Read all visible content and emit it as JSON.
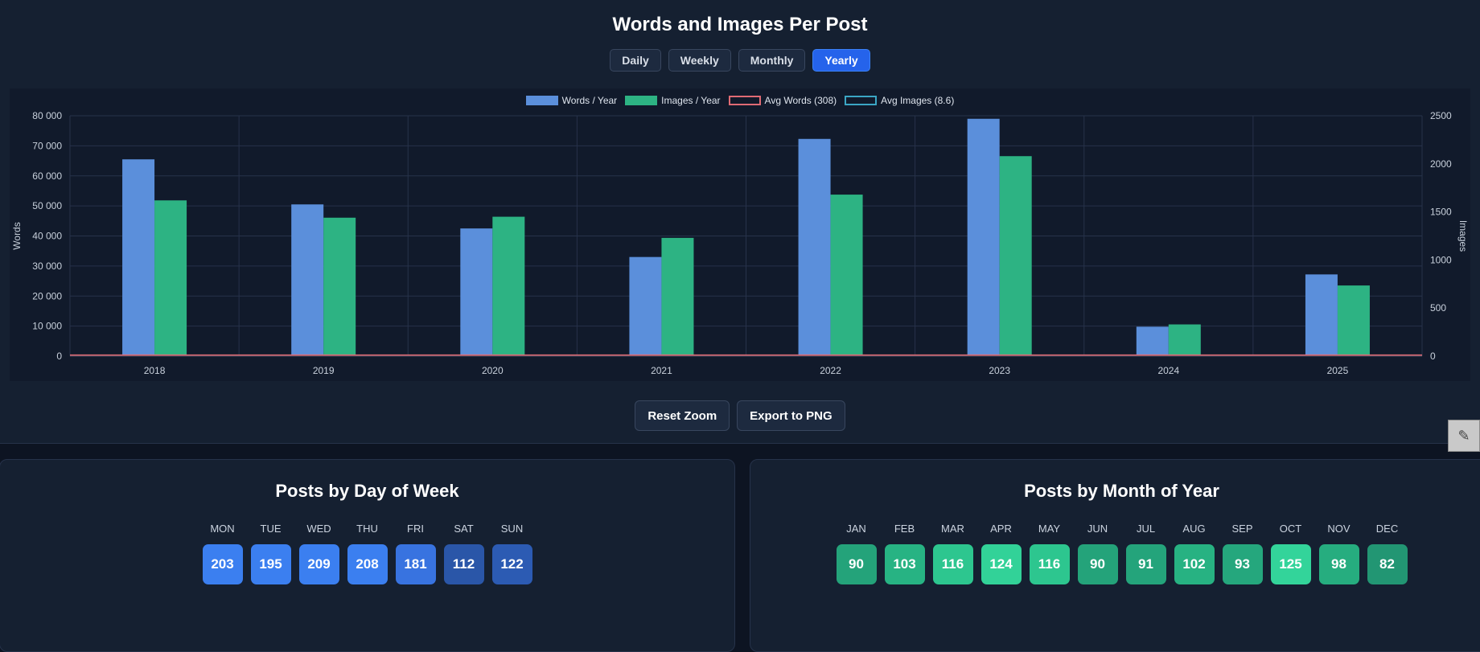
{
  "title": "Words and Images Per Post",
  "range_buttons": [
    {
      "label": "Daily",
      "active": false
    },
    {
      "label": "Weekly",
      "active": false
    },
    {
      "label": "Monthly",
      "active": false
    },
    {
      "label": "Yearly",
      "active": true
    }
  ],
  "legend": [
    {
      "label": "Words / Year",
      "fill": "#5b8fdb",
      "border": "#5b8fdb"
    },
    {
      "label": "Images / Year",
      "fill": "#2db383",
      "border": "#2db383"
    },
    {
      "label": "Avg Words (308)",
      "fill": "transparent",
      "border": "#e06b74"
    },
    {
      "label": "Avg Images (8.6)",
      "fill": "transparent",
      "border": "#3ba6c4"
    }
  ],
  "chart_data": {
    "type": "bar",
    "title": "Words and Images Per Post",
    "categories": [
      "2018",
      "2019",
      "2020",
      "2021",
      "2022",
      "2023",
      "2024",
      "2025"
    ],
    "series": [
      {
        "name": "Words / Year",
        "axis": "left",
        "color": "#5b8fdb",
        "values": [
          65500,
          50500,
          42500,
          33000,
          72300,
          79000,
          9800,
          27200
        ]
      },
      {
        "name": "Images / Year",
        "axis": "right",
        "color": "#2db383",
        "values": [
          1620,
          1440,
          1450,
          1230,
          1680,
          2080,
          330,
          735
        ]
      },
      {
        "name": "Avg Words (308)",
        "axis": "left",
        "type": "line",
        "color": "#e06b74",
        "value": 308
      },
      {
        "name": "Avg Images (8.6)",
        "axis": "right",
        "type": "line",
        "color": "#3ba6c4",
        "value": 8.6
      }
    ],
    "ylabel": "Words",
    "y2label": "Images",
    "ylim": [
      0,
      80000
    ],
    "y2lim": [
      0,
      2500
    ],
    "yticks": [
      "0",
      "10 000",
      "20 000",
      "30 000",
      "40 000",
      "50 000",
      "60 000",
      "70 000",
      "80 000"
    ],
    "y2ticks": [
      "0",
      "500",
      "1000",
      "1500",
      "2000",
      "2500"
    ],
    "grid": true,
    "legend_position": "top-center"
  },
  "actions": {
    "reset": "Reset Zoom",
    "export": "Export to PNG"
  },
  "day_of_week": {
    "title": "Posts by Day of Week",
    "items": [
      {
        "label": "MON",
        "value": "203",
        "color": "#3b7ff0"
      },
      {
        "label": "TUE",
        "value": "195",
        "color": "#3b7ff0"
      },
      {
        "label": "WED",
        "value": "209",
        "color": "#3b7ff0"
      },
      {
        "label": "THU",
        "value": "208",
        "color": "#3b7ff0"
      },
      {
        "label": "FRI",
        "value": "181",
        "color": "#3873e0"
      },
      {
        "label": "SAT",
        "value": "112",
        "color": "#2a56a8"
      },
      {
        "label": "SUN",
        "value": "122",
        "color": "#2c5bb3"
      }
    ]
  },
  "month_of_year": {
    "title": "Posts by Month of Year",
    "items": [
      {
        "label": "JAN",
        "value": "90",
        "color": "#24a37a"
      },
      {
        "label": "FEB",
        "value": "103",
        "color": "#27b383"
      },
      {
        "label": "MAR",
        "value": "116",
        "color": "#2dc68f"
      },
      {
        "label": "APR",
        "value": "124",
        "color": "#32d298"
      },
      {
        "label": "MAY",
        "value": "116",
        "color": "#2dc68f"
      },
      {
        "label": "JUN",
        "value": "90",
        "color": "#24a37a"
      },
      {
        "label": "JUL",
        "value": "91",
        "color": "#24a47b"
      },
      {
        "label": "AUG",
        "value": "102",
        "color": "#27b282"
      },
      {
        "label": "SEP",
        "value": "93",
        "color": "#25a77d"
      },
      {
        "label": "OCT",
        "value": "125",
        "color": "#33d49a"
      },
      {
        "label": "NOV",
        "value": "98",
        "color": "#26ad7f"
      },
      {
        "label": "DEC",
        "value": "82",
        "color": "#229673"
      }
    ]
  }
}
